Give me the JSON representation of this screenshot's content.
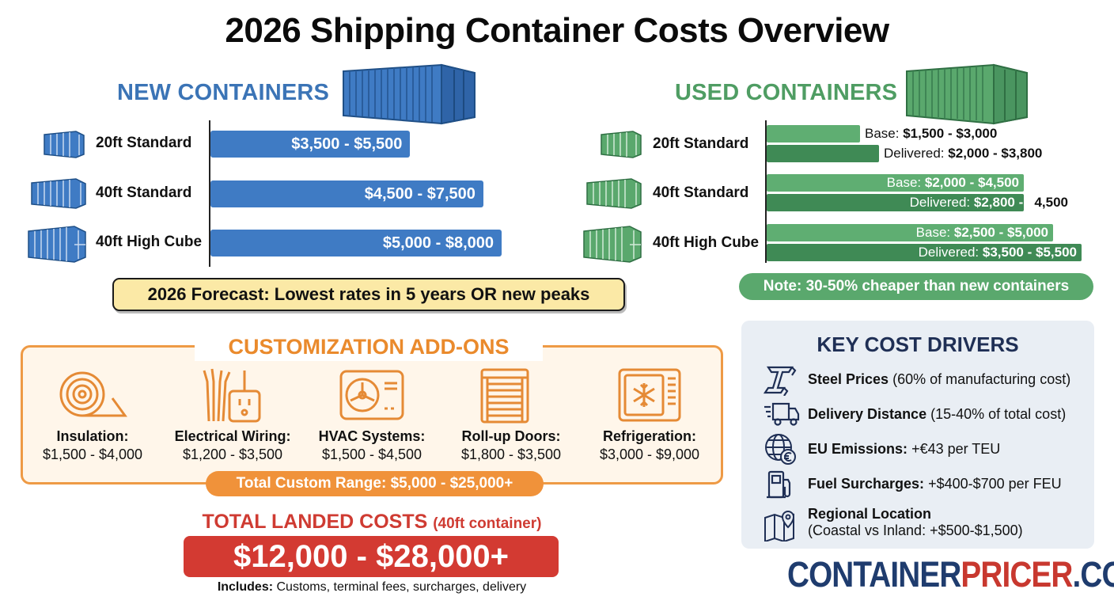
{
  "title": "2026 Shipping Container Costs Overview",
  "colors": {
    "new": "#3f7bc4",
    "used_base": "#5fae72",
    "used_delivered": "#3f8a55",
    "customization": "#ee9a45",
    "landed": "#d33a32",
    "drivers_heading": "#1f2f55"
  },
  "new_containers": {
    "heading": "NEW CONTAINERS",
    "forecast": "2026 Forecast: Lowest rates in 5 years OR new peaks"
  },
  "used_containers": {
    "heading": "USED CONTAINERS",
    "base_prefix": "Base:",
    "delivered_prefix": "Delivered:",
    "note": "Note: 30-50% cheaper than new containers"
  },
  "chart_data": [
    {
      "type": "bar",
      "orientation": "horizontal",
      "title": "NEW CONTAINERS",
      "categories": [
        "20ft Standard",
        "40ft Standard",
        "40ft High Cube"
      ],
      "series": [
        {
          "values": [
            [
              3500,
              5500
            ],
            [
              4500,
              7500
            ],
            [
              5000,
              8000
            ]
          ],
          "labels": [
            "$3,500 - $5,500",
            "$4,500 - $7,500",
            "$5,000 - $8,000"
          ]
        }
      ],
      "xlim": [
        0,
        8000
      ]
    },
    {
      "type": "bar",
      "orientation": "horizontal",
      "title": "USED CONTAINERS",
      "categories": [
        "20ft Standard",
        "40ft Standard",
        "40ft High Cube"
      ],
      "series": [
        {
          "name": "Base",
          "values": [
            [
              1500,
              3000
            ],
            [
              2000,
              4500
            ],
            [
              2500,
              5000
            ]
          ],
          "labels": [
            "$1,500 - $3,000",
            "$2,000 - $4,500",
            "$2,500 - $5,000"
          ]
        },
        {
          "name": "Delivered",
          "values": [
            [
              2000,
              3800
            ],
            [
              2800,
              4500
            ],
            [
              3500,
              5500
            ]
          ],
          "labels": [
            "$2,000 - $3,800",
            "$2,800 - $4,500",
            "$3,500 - $5,500"
          ]
        }
      ],
      "xlim": [
        0,
        5500
      ]
    }
  ],
  "customization": {
    "heading": "CUSTOMIZATION ADD-ONS",
    "items": [
      {
        "name": "Insulation:",
        "price": "$1,500 - $4,000",
        "icon": "insulation-roll-icon"
      },
      {
        "name": "Electrical Wiring:",
        "price": "$1,200 - $3,500",
        "icon": "electrical-outlet-icon"
      },
      {
        "name": "HVAC Systems:",
        "price": "$1,500 - $4,500",
        "icon": "hvac-unit-icon"
      },
      {
        "name": "Roll-up Doors:",
        "price": "$1,800 - $3,500",
        "icon": "roll-up-door-icon"
      },
      {
        "name": "Refrigeration:",
        "price": "$3,000 - $9,000",
        "icon": "refrigeration-icon"
      }
    ],
    "total": "Total Custom Range: $5,000 - $25,000+"
  },
  "landed": {
    "heading": "TOTAL LANDED COSTS",
    "heading_note": "(40ft container)",
    "value": "$12,000 - $28,000+",
    "includes_label": "Includes:",
    "includes_text": "Customs, terminal fees, surcharges, delivery"
  },
  "drivers": {
    "heading": "KEY COST DRIVERS",
    "items": [
      {
        "bold": "Steel Prices",
        "text": "(60% of manufacturing cost)",
        "icon": "steel-beam-icon"
      },
      {
        "bold": "Delivery Distance",
        "text": "(15-40% of total cost)",
        "icon": "delivery-truck-icon"
      },
      {
        "bold": "EU Emissions:",
        "text": "+€43 per TEU",
        "icon": "globe-euro-icon"
      },
      {
        "bold": "Fuel Surcharges:",
        "text": "+$400-$700 per FEU",
        "icon": "fuel-pump-icon"
      },
      {
        "bold": "Regional Location",
        "text": "(Coastal vs Inland: +$500-$1,500)",
        "icon": "map-pin-icon"
      }
    ]
  },
  "brand": {
    "part1": "CONTAINER",
    "part2": "PRICER",
    "part3": ".COM"
  }
}
